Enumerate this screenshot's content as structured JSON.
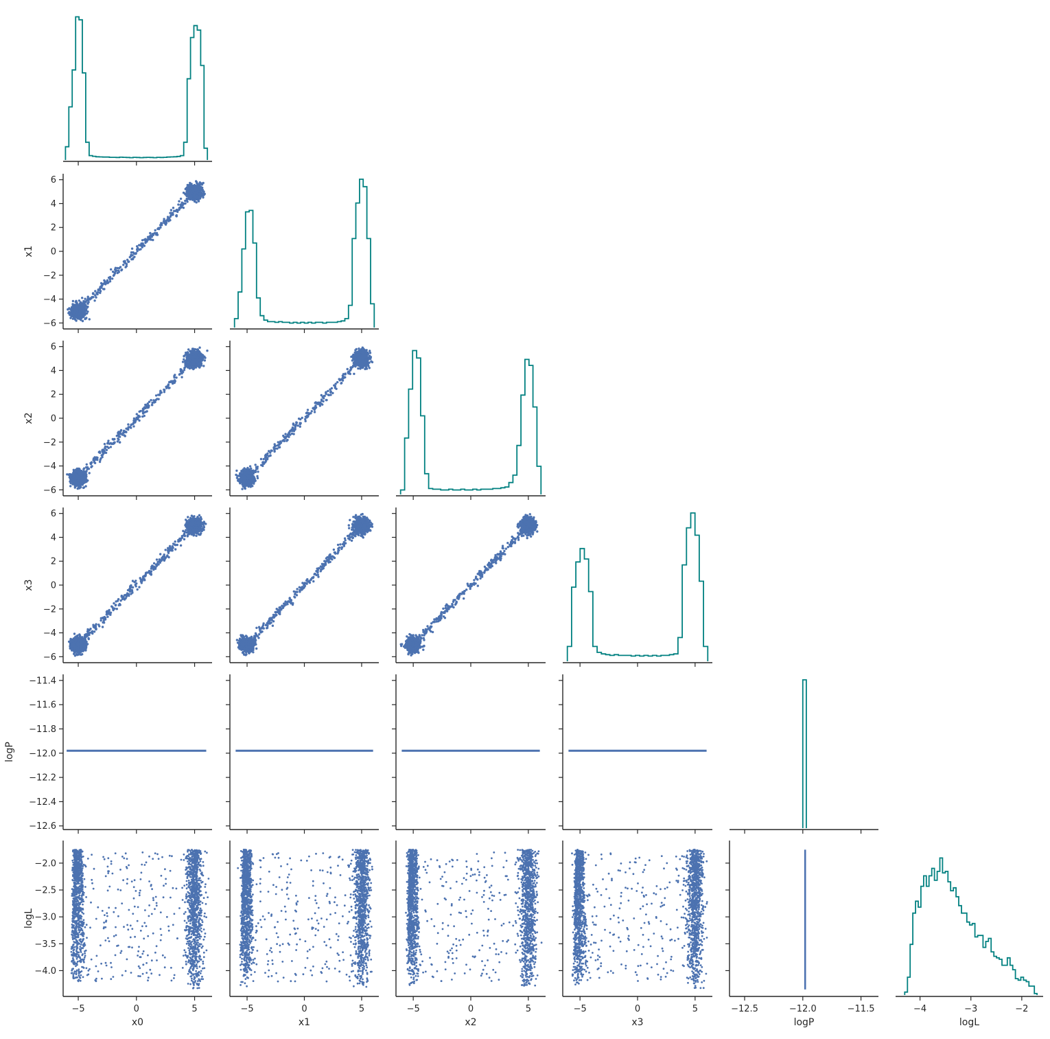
{
  "chart_data": {
    "type": "scatter",
    "title": "",
    "layout": "corner",
    "variables": [
      "x0",
      "x1",
      "x2",
      "x3",
      "logP",
      "logL"
    ],
    "axis_ranges": {
      "x0": [
        -6.3,
        6.5
      ],
      "x1": [
        -6.5,
        6.5
      ],
      "x2": [
        -6.5,
        6.5
      ],
      "x3": [
        -6.5,
        6.5
      ],
      "logP": [
        -12.63,
        -11.35
      ],
      "logL": [
        -4.48,
        -1.58
      ]
    },
    "ticks": {
      "x0": [
        -5,
        0,
        5
      ],
      "x1": [
        -5,
        0,
        5
      ],
      "x2": [
        -5,
        0,
        5
      ],
      "x3": [
        -5,
        0,
        5
      ],
      "logP": [
        -12.5,
        -12.0,
        -11.5
      ],
      "logL": [
        -4,
        -3,
        -2
      ]
    },
    "tick_labels_x": {
      "x0": [
        "−5",
        "0",
        "5"
      ],
      "x1": [
        "−5",
        "0",
        "5"
      ],
      "x2": [
        "−5",
        "0",
        "5"
      ],
      "x3": [
        "−5",
        "0",
        "5"
      ],
      "logP": [
        "−12.5",
        "−12.0",
        "−11.5"
      ],
      "logL": [
        "−4",
        "−3",
        "−2"
      ]
    },
    "yticks": {
      "x1": [
        -6,
        -4,
        -2,
        0,
        2,
        4,
        6
      ],
      "x2": [
        -6,
        -4,
        -2,
        0,
        2,
        4,
        6
      ],
      "x3": [
        -6,
        -4,
        -2,
        0,
        2,
        4,
        6
      ],
      "logP": [
        -12.6,
        -12.4,
        -12.2,
        -12.0,
        -11.8,
        -11.6,
        -11.4
      ],
      "logL": [
        -4.0,
        -3.5,
        -3.0,
        -2.5,
        -2.0
      ]
    },
    "tick_labels_y": {
      "x1": [
        "−6",
        "−4",
        "−2",
        "0",
        "2",
        "4",
        "6"
      ],
      "x2": [
        "−6",
        "−4",
        "−2",
        "0",
        "2",
        "4",
        "6"
      ],
      "x3": [
        "−6",
        "−4",
        "−2",
        "0",
        "2",
        "4",
        "6"
      ],
      "logP": [
        "−12.6",
        "−12.4",
        "−12.2",
        "−12.0",
        "−11.8",
        "−11.6",
        "−11.4"
      ],
      "logL": [
        "−4.0",
        "−3.5",
        "−3.0",
        "−2.5",
        "−2.0"
      ]
    },
    "logP_constant": -11.98,
    "histograms": {
      "x0": {
        "range": [
          -6.1,
          6.1
        ],
        "rel_heights": [
          0.09,
          0.36,
          0.61,
          0.97,
          0.95,
          0.59,
          0.12,
          0.03,
          0.025,
          0.022,
          0.021,
          0.02,
          0.02,
          0.018,
          0.018,
          0.017,
          0.019,
          0.018,
          0.017,
          0.016,
          0.018,
          0.017,
          0.016,
          0.017,
          0.018,
          0.017,
          0.016,
          0.018,
          0.017,
          0.018,
          0.02,
          0.021,
          0.022,
          0.024,
          0.03,
          0.12,
          0.55,
          0.83,
          0.91,
          0.88,
          0.64,
          0.08
        ]
      },
      "x1": {
        "range": [
          -6.1,
          6.1
        ],
        "rel_heights": [
          0.06,
          0.24,
          0.53,
          0.78,
          0.79,
          0.57,
          0.2,
          0.08,
          0.05,
          0.04,
          0.04,
          0.035,
          0.04,
          0.035,
          0.035,
          0.03,
          0.035,
          0.03,
          0.035,
          0.03,
          0.035,
          0.03,
          0.035,
          0.035,
          0.03,
          0.035,
          0.035,
          0.035,
          0.04,
          0.045,
          0.06,
          0.15,
          0.6,
          0.84,
          1.0,
          0.95,
          0.6,
          0.16
        ]
      },
      "x2": {
        "range": [
          -6.1,
          6.1
        ],
        "rel_heights": [
          0.03,
          0.38,
          0.71,
          0.97,
          0.92,
          0.53,
          0.14,
          0.04,
          0.035,
          0.035,
          0.03,
          0.03,
          0.035,
          0.03,
          0.03,
          0.035,
          0.03,
          0.03,
          0.035,
          0.03,
          0.035,
          0.035,
          0.035,
          0.04,
          0.04,
          0.045,
          0.05,
          0.08,
          0.13,
          0.33,
          0.67,
          0.91,
          0.87,
          0.59,
          0.19
        ]
      },
      "x3": {
        "range": [
          -6.1,
          6.1
        ],
        "rel_heights": [
          0.1,
          0.5,
          0.67,
          0.76,
          0.69,
          0.47,
          0.1,
          0.06,
          0.05,
          0.045,
          0.04,
          0.045,
          0.04,
          0.04,
          0.04,
          0.035,
          0.04,
          0.035,
          0.04,
          0.035,
          0.04,
          0.035,
          0.04,
          0.04,
          0.045,
          0.05,
          0.16,
          0.65,
          0.9,
          1.0,
          0.85,
          0.54,
          0.1
        ]
      },
      "logP": {
        "range": [
          -12.0,
          -11.97
        ],
        "rel_heights": [
          1.0
        ]
      },
      "logL": {
        "range": [
          -4.3,
          -1.7
        ],
        "rel_heights": [
          0.02,
          0.12,
          0.34,
          0.55,
          0.63,
          0.59,
          0.73,
          0.8,
          0.73,
          0.8,
          0.85,
          0.77,
          0.83,
          0.92,
          0.82,
          0.83,
          0.76,
          0.7,
          0.72,
          0.66,
          0.6,
          0.55,
          0.55,
          0.49,
          0.47,
          0.48,
          0.39,
          0.4,
          0.4,
          0.32,
          0.36,
          0.38,
          0.29,
          0.26,
          0.25,
          0.24,
          0.2,
          0.2,
          0.25,
          0.2,
          0.17,
          0.11,
          0.1,
          0.12,
          0.1,
          0.09,
          0.06,
          0.06,
          0.01
        ]
      }
    },
    "scatter_description": {
      "x_vs_x_structure": [
        "clustered blob near (-5,-5)",
        "clustered blob near (5,5)",
        "narrow diagonal band connecting them"
      ],
      "logL_structure": [
        "dense vertical clusters at x near -5 and x near 5",
        "sparse uniform scatter between"
      ],
      "logP_structure": "constant value -11.98"
    }
  }
}
